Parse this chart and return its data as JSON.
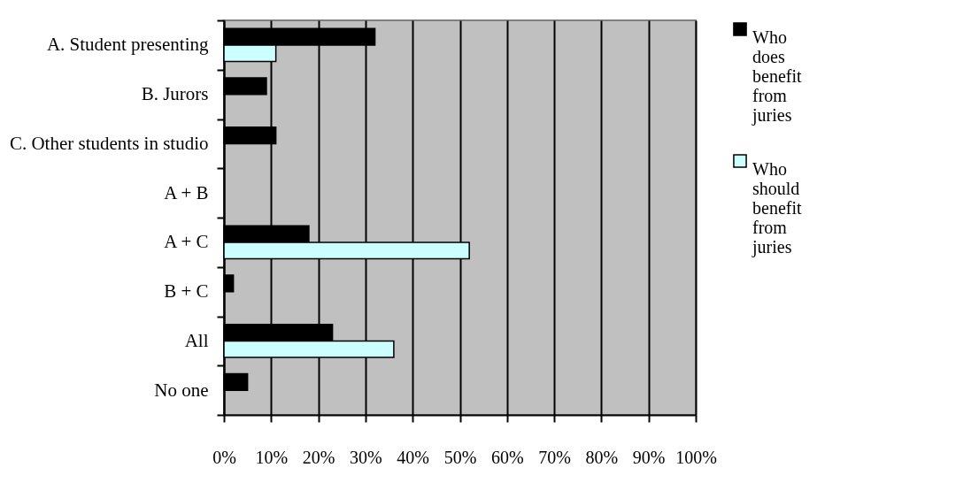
{
  "chart_data": {
    "type": "bar",
    "orientation": "horizontal",
    "categories": [
      "A. Student presenting",
      "B. Jurors",
      "C. Other students in studio",
      "A + B",
      "A + C",
      "B + C",
      "All",
      "No one"
    ],
    "series": [
      {
        "name": "Who does benefit from juries",
        "color": "#000000",
        "values": [
          32,
          9,
          11,
          null,
          18,
          2,
          23,
          5
        ]
      },
      {
        "name": "Who should benefit from juries",
        "color": "#ccffff",
        "values": [
          11,
          null,
          null,
          null,
          52,
          null,
          36,
          null
        ]
      }
    ],
    "xlim": [
      0,
      100
    ],
    "xticks": [
      {
        "value": 0,
        "label": "0%"
      },
      {
        "value": 10,
        "label": "10%"
      },
      {
        "value": 20,
        "label": "20%"
      },
      {
        "value": 30,
        "label": "30%"
      },
      {
        "value": 40,
        "label": "40%"
      },
      {
        "value": 50,
        "label": "50%"
      },
      {
        "value": 60,
        "label": "60%"
      },
      {
        "value": 70,
        "label": "70%"
      },
      {
        "value": 80,
        "label": "80%"
      },
      {
        "value": 90,
        "label": "90%"
      },
      {
        "value": 100,
        "label": "100%"
      }
    ],
    "grid": "x",
    "legend": "right"
  }
}
